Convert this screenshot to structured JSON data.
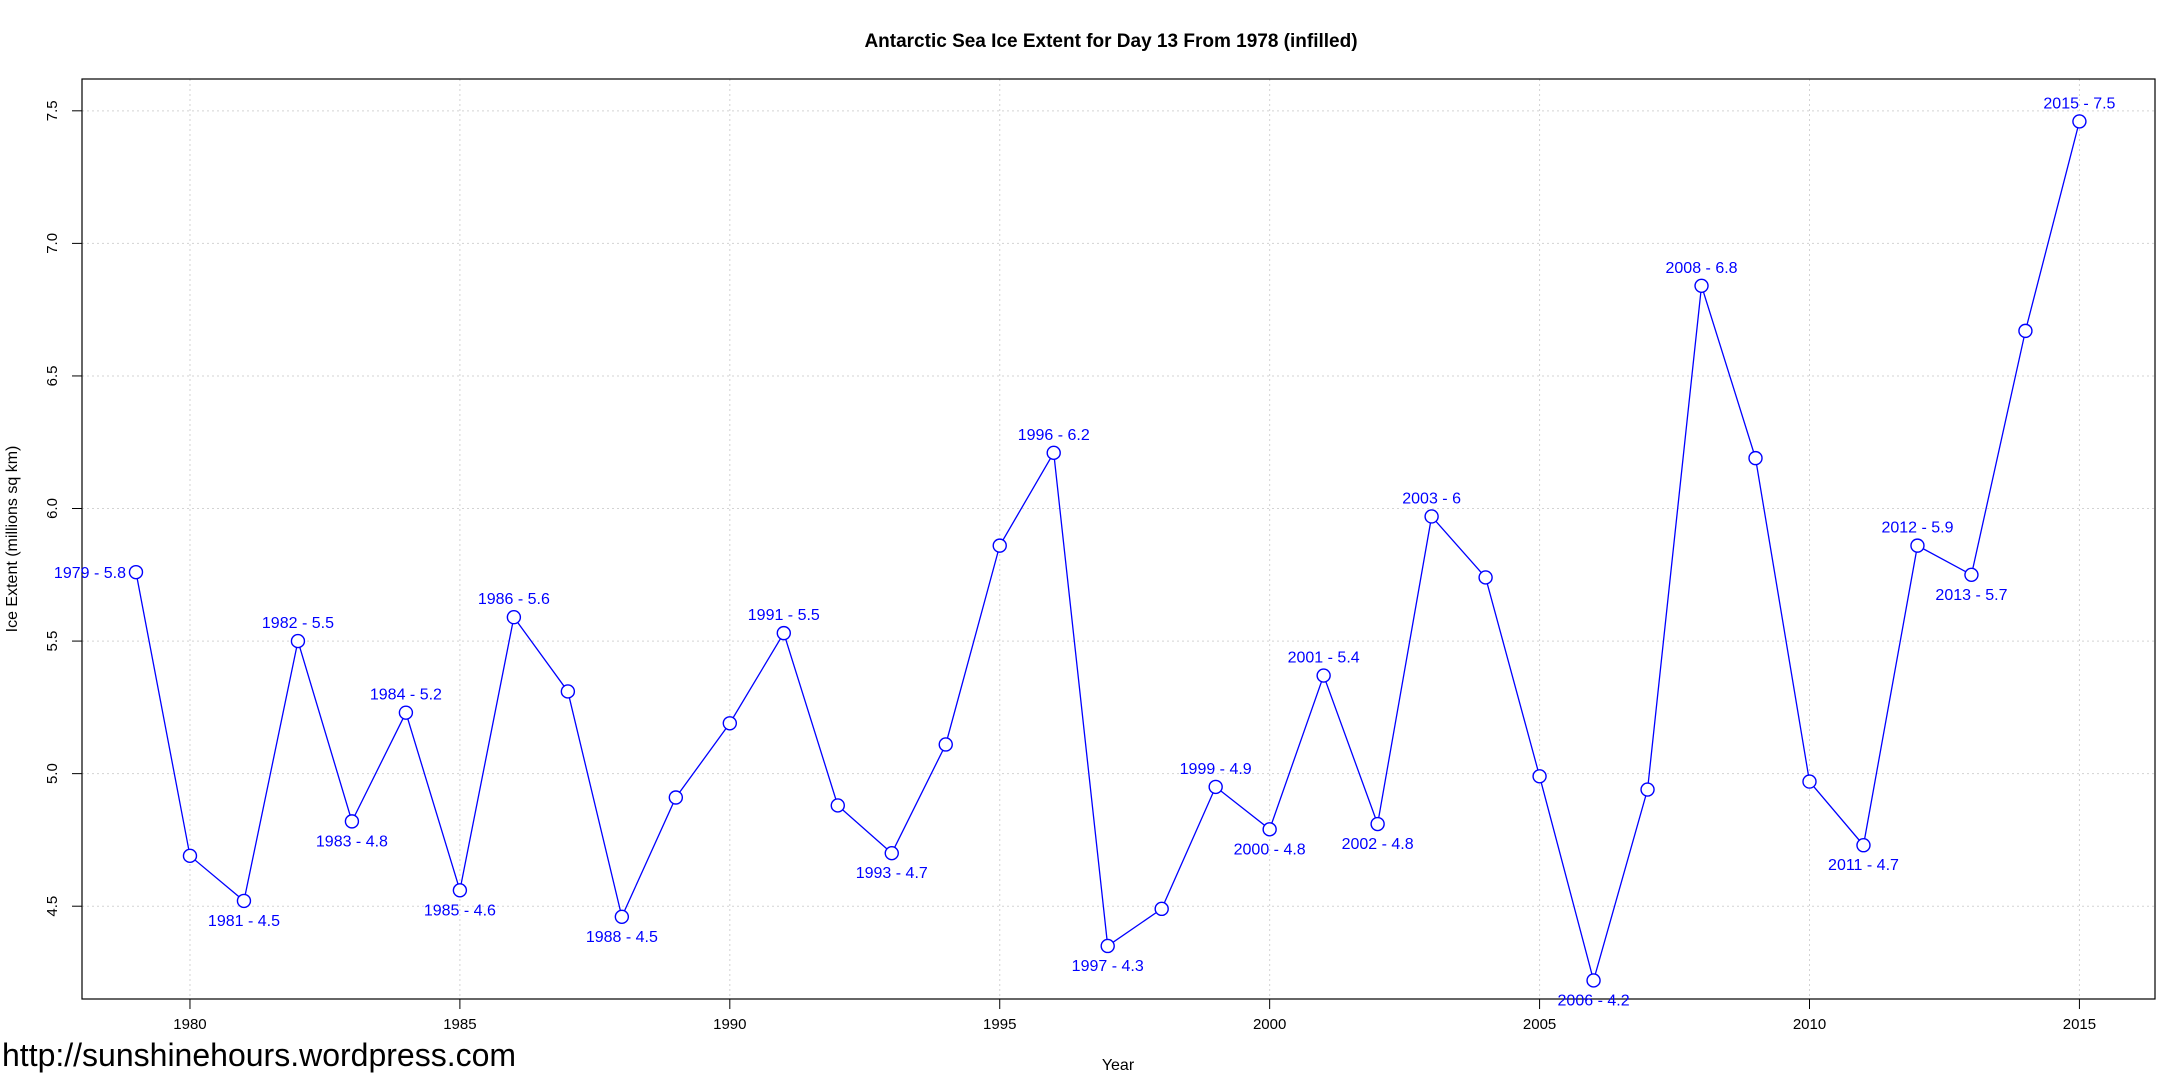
{
  "chart_data": {
    "type": "line",
    "title": "Antarctic Sea Ice Extent for Day 13 From 1978 (infilled)",
    "xlabel": "Year",
    "ylabel": "Ice Extent (millions sq km)",
    "xlim": [
      1978.0,
      2016.4
    ],
    "ylim": [
      4.15,
      7.62
    ],
    "xticks": [
      1980,
      1985,
      1990,
      1995,
      2000,
      2005,
      2010,
      2015
    ],
    "yticks": [
      4.5,
      5.0,
      5.5,
      6.0,
      6.5,
      7.0,
      7.5
    ],
    "ytick_labels": [
      "4.5",
      "5.0",
      "5.5",
      "6.0",
      "6.5",
      "7.0",
      "7.5"
    ],
    "grid": true,
    "line_color": "#0000ff",
    "series": [
      {
        "x": [
          1979,
          1980,
          1981,
          1982,
          1983,
          1984,
          1985,
          1986,
          1987,
          1988,
          1989,
          1990,
          1991,
          1992,
          1993,
          1994,
          1995,
          1996,
          1997,
          1998,
          1999,
          2000,
          2001,
          2002,
          2003,
          2004,
          2005,
          2006,
          2007,
          2008,
          2009,
          2010,
          2011,
          2012,
          2013,
          2014,
          2015
        ],
        "y": [
          5.76,
          4.69,
          4.52,
          5.5,
          4.82,
          5.23,
          4.56,
          5.59,
          5.31,
          4.46,
          4.91,
          5.19,
          5.53,
          4.88,
          4.7,
          5.11,
          5.86,
          6.21,
          4.35,
          4.49,
          4.95,
          4.79,
          5.37,
          4.81,
          5.97,
          5.74,
          4.99,
          4.22,
          4.94,
          6.84,
          6.19,
          4.97,
          4.73,
          5.86,
          5.75,
          6.67,
          7.46
        ]
      }
    ],
    "annotations": [
      {
        "x": 1979,
        "text": "1979 - 5.8",
        "position": "left"
      },
      {
        "x": 1981,
        "text": "1981 - 4.5",
        "position": "below"
      },
      {
        "x": 1982,
        "text": "1982 - 5.5",
        "position": "above"
      },
      {
        "x": 1983,
        "text": "1983 - 4.8",
        "position": "below"
      },
      {
        "x": 1984,
        "text": "1984 - 5.2",
        "position": "above"
      },
      {
        "x": 1985,
        "text": "1985 - 4.6",
        "position": "below"
      },
      {
        "x": 1986,
        "text": "1986 - 5.6",
        "position": "above"
      },
      {
        "x": 1988,
        "text": "1988 - 4.5",
        "position": "below"
      },
      {
        "x": 1991,
        "text": "1991 - 5.5",
        "position": "above"
      },
      {
        "x": 1993,
        "text": "1993 - 4.7",
        "position": "below"
      },
      {
        "x": 1996,
        "text": "1996 - 6.2",
        "position": "above"
      },
      {
        "x": 1997,
        "text": "1997 - 4.3",
        "position": "below"
      },
      {
        "x": 1999,
        "text": "1999 - 4.9",
        "position": "above"
      },
      {
        "x": 2000,
        "text": "2000 - 4.8",
        "position": "below"
      },
      {
        "x": 2001,
        "text": "2001 - 5.4",
        "position": "above"
      },
      {
        "x": 2002,
        "text": "2002 - 4.8",
        "position": "below"
      },
      {
        "x": 2003,
        "text": "2003 - 6",
        "position": "above"
      },
      {
        "x": 2006,
        "text": "2006 - 4.2",
        "position": "below"
      },
      {
        "x": 2008,
        "text": "2008 - 6.8",
        "position": "above"
      },
      {
        "x": 2011,
        "text": "2011 - 4.7",
        "position": "below"
      },
      {
        "x": 2012,
        "text": "2012 - 5.9",
        "position": "above"
      },
      {
        "x": 2013,
        "text": "2013 - 5.7",
        "position": "below"
      },
      {
        "x": 2015,
        "text": "2015 - 7.5",
        "position": "above"
      }
    ]
  },
  "footer": {
    "url": "http://sunshinehours.wordpress.com"
  }
}
